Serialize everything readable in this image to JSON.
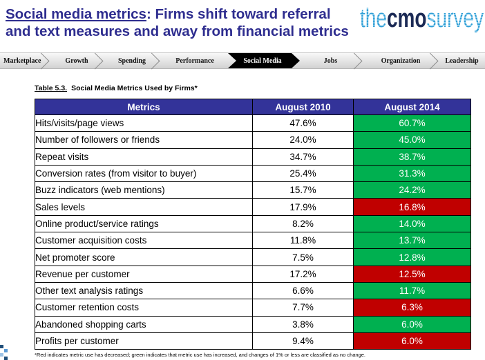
{
  "title": {
    "highlight": "Social media metrics",
    "line1_rest": ": Firms shift toward referral",
    "line2": "and text measures and away from financial metrics"
  },
  "logo": {
    "part1": "the",
    "part2": "cmo",
    "part3": "survey"
  },
  "nav": {
    "items": [
      {
        "label": "Marketplace",
        "active": false
      },
      {
        "label": "Growth",
        "active": false
      },
      {
        "label": "Spending",
        "active": false
      },
      {
        "label": "Performance",
        "active": false
      },
      {
        "label": "Social Media",
        "active": true
      },
      {
        "label": "Jobs",
        "active": false
      },
      {
        "label": "Organization",
        "active": false
      },
      {
        "label": "Leadership",
        "active": false
      }
    ]
  },
  "table": {
    "caption_number": "Table 5.3.",
    "caption_text": "Social Media Metrics Used by Firms*",
    "headers": [
      "Metrics",
      "August 2010",
      "August 2014"
    ],
    "rows": [
      {
        "metric": "Hits/visits/page views",
        "aug_2010": "47.6%",
        "aug_2014": "60.7%",
        "color_2014": "#00B050"
      },
      {
        "metric": "Number of followers or friends",
        "aug_2010": "24.0%",
        "aug_2014": "45.0%",
        "color_2014": "#00B050"
      },
      {
        "metric": "Repeat visits",
        "aug_2010": "34.7%",
        "aug_2014": "38.7%",
        "color_2014": "#00B050"
      },
      {
        "metric": "Conversion rates (from visitor to buyer)",
        "aug_2010": "25.4%",
        "aug_2014": "31.3%",
        "color_2014": "#00B050"
      },
      {
        "metric": "Buzz indicators (web mentions)",
        "aug_2010": "15.7%",
        "aug_2014": "24.2%",
        "color_2014": "#00B050"
      },
      {
        "metric": "Sales levels",
        "aug_2010": "17.9%",
        "aug_2014": "16.8%",
        "color_2014": "#C00000"
      },
      {
        "metric": "Online product/service ratings",
        "aug_2010": "8.2%",
        "aug_2014": "14.0%",
        "color_2014": "#00B050"
      },
      {
        "metric": "Customer acquisition costs",
        "aug_2010": "11.8%",
        "aug_2014": "13.7%",
        "color_2014": "#00B050"
      },
      {
        "metric": "Net promoter score",
        "aug_2010": "7.5%",
        "aug_2014": "12.8%",
        "color_2014": "#00B050"
      },
      {
        "metric": "Revenue per customer",
        "aug_2010": "17.2%",
        "aug_2014": "12.5%",
        "color_2014": "#C00000"
      },
      {
        "metric": "Other text analysis ratings",
        "aug_2010": "6.6%",
        "aug_2014": "11.7%",
        "color_2014": "#00B050"
      },
      {
        "metric": "Customer retention costs",
        "aug_2010": "7.7%",
        "aug_2014": "6.3%",
        "color_2014": "#C00000"
      },
      {
        "metric": "Abandoned shopping carts",
        "aug_2010": "3.8%",
        "aug_2014": "6.0%",
        "color_2014": "#00B050"
      },
      {
        "metric": "Profits per customer",
        "aug_2010": "9.4%",
        "aug_2014": "6.0%",
        "color_2014": "#C00000"
      }
    ]
  },
  "footnote": "*Red indicates metric use has decreased; green  indicates that metric use has increased, and changes of 1% or less are classified as no change.",
  "colors": {
    "title": "#2E2D8F",
    "header_bg": "#333399",
    "increase": "#00B050",
    "decrease": "#C00000",
    "active_tab": "#000000"
  }
}
